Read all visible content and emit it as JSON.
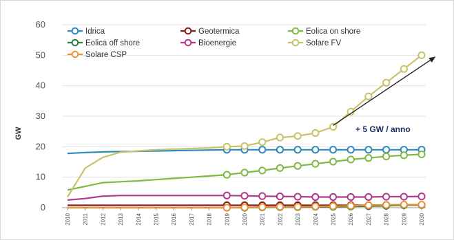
{
  "chart_data": {
    "type": "line",
    "title": "",
    "xlabel": "",
    "ylabel": "GW",
    "ylim": [
      0,
      60
    ],
    "yticks": [
      0,
      10,
      20,
      30,
      40,
      50,
      60
    ],
    "grid": "horizontal",
    "x": [
      2010,
      2011,
      2012,
      2013,
      2014,
      2015,
      2016,
      2017,
      2018,
      2019,
      2020,
      2021,
      2022,
      2023,
      2024,
      2025,
      2026,
      2027,
      2028,
      2029,
      2030
    ],
    "marker_start_year": 2019,
    "series": [
      {
        "name": "Idrica",
        "color": "#2e8bc0",
        "values": [
          17.8,
          18.1,
          18.3,
          18.4,
          18.5,
          18.6,
          18.7,
          18.8,
          18.9,
          19.0,
          19.0,
          19.0,
          19.0,
          19.0,
          19.0,
          19.0,
          19.0,
          19.0,
          19.0,
          19.0,
          19.0
        ]
      },
      {
        "name": "Geotermica",
        "color": "#8b1a1a",
        "values": [
          0.8,
          0.8,
          0.8,
          0.8,
          0.8,
          0.8,
          0.8,
          0.8,
          0.8,
          0.8,
          0.8,
          0.8,
          0.8,
          0.8,
          0.8,
          0.8,
          0.8,
          0.8,
          0.9,
          0.9,
          0.9
        ]
      },
      {
        "name": "Eolica on shore",
        "color": "#7dbb42",
        "values": [
          5.8,
          7.0,
          8.2,
          8.5,
          8.8,
          9.2,
          9.6,
          10.0,
          10.4,
          10.8,
          11.5,
          12.2,
          13.0,
          13.7,
          14.4,
          15.1,
          15.8,
          16.3,
          16.8,
          17.2,
          17.5
        ]
      },
      {
        "name": "Eolica off  shore",
        "color": "#2f7d3a",
        "values": [
          0,
          0,
          0,
          0,
          0,
          0,
          0,
          0,
          0,
          0,
          0,
          0.1,
          0.2,
          0.2,
          0.3,
          0.3,
          0.4,
          0.5,
          0.6,
          0.8,
          0.9
        ]
      },
      {
        "name": "Bioenergie",
        "color": "#b1398e",
        "values": [
          2.5,
          3.0,
          3.8,
          4.0,
          4.0,
          4.0,
          4.0,
          4.0,
          4.0,
          4.0,
          3.9,
          3.8,
          3.7,
          3.6,
          3.5,
          3.5,
          3.5,
          3.5,
          3.6,
          3.6,
          3.7
        ]
      },
      {
        "name": "Solare FV",
        "color": "#c9c26a",
        "values": [
          3.5,
          13.0,
          16.5,
          18.2,
          18.6,
          19.0,
          19.2,
          19.4,
          19.6,
          20.0,
          20.2,
          21.5,
          23.0,
          23.5,
          24.5,
          26.5,
          31.5,
          36.5,
          41.0,
          45.5,
          50.0
        ]
      },
      {
        "name": "Solare CSP",
        "color": "#e8923a",
        "values": [
          0,
          0,
          0,
          0,
          0,
          0,
          0,
          0,
          0,
          0,
          0.1,
          0.2,
          0.3,
          0.3,
          0.4,
          0.5,
          0.6,
          0.8,
          0.9,
          1.0,
          1.0
        ]
      }
    ],
    "annotation": {
      "text": "+ 5 GW / anno",
      "arrow_from": [
        2025,
        27
      ],
      "arrow_to": [
        2030.8,
        49.5
      ]
    },
    "legend": {
      "placement": "top-left",
      "layout": [
        [
          "Idrica",
          "Geotermica",
          "Eolica on shore"
        ],
        [
          "Eolica off  shore",
          "Bioenergie",
          "Solare FV"
        ],
        [
          "Solare CSP"
        ]
      ]
    }
  }
}
